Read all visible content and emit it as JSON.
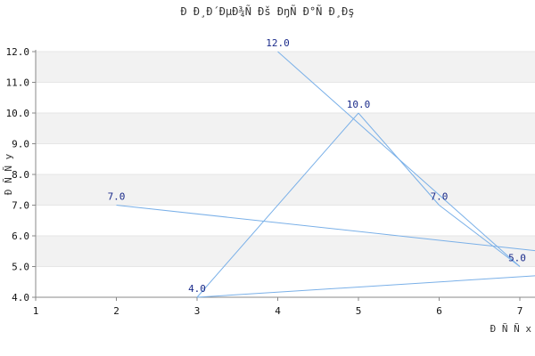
{
  "chart_data": {
    "type": "line",
    "title": "Ð Ð¸Ð´ÐµÐ¾Ñ Ðš ÐŋÑ Ð°Ñ Ð¸Ðş",
    "xlabel": "Ð Ñ Ñ  x",
    "ylabel": "Ð Ñ Ñ  y",
    "xlim": [
      1,
      7
    ],
    "ylim": [
      4.0,
      12.0
    ],
    "x_ticks": [
      "1",
      "2",
      "3",
      "4",
      "5",
      "6",
      "7"
    ],
    "y_ticks": [
      "4.0",
      "5.0",
      "6.0",
      "7.0",
      "8.0",
      "9.0",
      "10.0",
      "11.0",
      "12.0"
    ],
    "grid": "horizontal-bands",
    "series": [
      {
        "points": [
          {
            "x": 4,
            "y": 12.0,
            "label": "12.0"
          },
          {
            "x": 7,
            "y": 5.0,
            "label": ""
          },
          {
            "x": 6,
            "y": 7.0,
            "label": "7.0"
          },
          {
            "x": 5,
            "y": 10.0,
            "label": "10.0"
          },
          {
            "x": 3,
            "y": 4.0,
            "label": "4.0"
          },
          {
            "x": 9,
            "y": 5.0,
            "label": "5.0"
          },
          {
            "x": 2,
            "y": 7.0,
            "label": "7.0"
          }
        ]
      }
    ],
    "colors": {
      "line": "#7ab0e8",
      "band": "#f2f2f2",
      "axis": "#888888"
    }
  }
}
